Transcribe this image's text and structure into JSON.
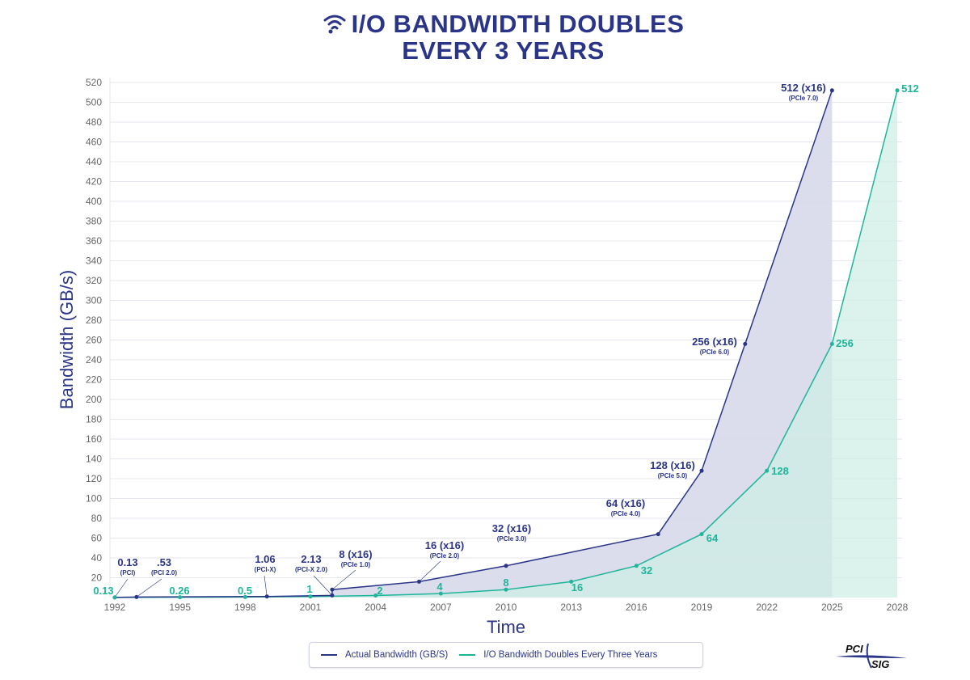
{
  "title": {
    "line1": "I/O BANDWIDTH DOUBLES",
    "line2": "EVERY 3 YEARS",
    "icon": "wifi-icon"
  },
  "logo": {
    "text_top": "PCI",
    "text_bottom": "SIG"
  },
  "colors": {
    "actual": "#2b3587",
    "doubling": "#1fb59a",
    "actual_fill": "#d9daeb",
    "doubling_fill": "#cdeee6"
  },
  "chart_data": {
    "type": "area",
    "xlabel": "Time",
    "ylabel": "Bandwidth (GB/s)",
    "xlim": [
      1992,
      2028
    ],
    "ylim": [
      0,
      520
    ],
    "x_ticks": [
      1992,
      1995,
      1998,
      2001,
      2004,
      2007,
      2010,
      2013,
      2016,
      2019,
      2022,
      2025,
      2028
    ],
    "y_ticks": [
      20,
      40,
      60,
      80,
      100,
      120,
      140,
      160,
      180,
      200,
      220,
      240,
      260,
      280,
      300,
      320,
      340,
      360,
      380,
      400,
      420,
      440,
      460,
      480,
      500,
      520
    ],
    "grid": "horizontal",
    "legend_position": "bottom",
    "series": [
      {
        "name": "Actual Bandwidth (GB/S)",
        "points": [
          {
            "x": 1992,
            "y": 0.13,
            "label": "0.13",
            "sub": "(PCI)"
          },
          {
            "x": 1993,
            "y": 0.53,
            "label": ".53",
            "sub": "(PCI 2.0)"
          },
          {
            "x": 1999,
            "y": 1.06,
            "label": "1.06",
            "sub": "(PCI-X)"
          },
          {
            "x": 2002,
            "y": 2.13,
            "label": "2.13",
            "sub": "(PCI-X 2.0)"
          },
          {
            "x": 2002,
            "y": 8,
            "label": "8 (x16)",
            "sub": "(PCIe 1.0)"
          },
          {
            "x": 2006,
            "y": 16,
            "label": "16 (x16)",
            "sub": "(PCIe 2.0)"
          },
          {
            "x": 2010,
            "y": 32,
            "label": "32 (x16)",
            "sub": "(PCIe 3.0)"
          },
          {
            "x": 2017,
            "y": 64,
            "label": "64 (x16)",
            "sub": "(PCIe 4.0)"
          },
          {
            "x": 2019,
            "y": 128,
            "label": "128 (x16)",
            "sub": "(PCIe 5.0)"
          },
          {
            "x": 2021,
            "y": 256,
            "label": "256 (x16)",
            "sub": "(PCIe 6.0)"
          },
          {
            "x": 2025,
            "y": 512,
            "label": "512 (x16)",
            "sub": "(PCIe 7.0)"
          }
        ]
      },
      {
        "name": "I/O Bandwidth Doubles Every Three Years",
        "points": [
          {
            "x": 1992,
            "y": 0.13,
            "label": "0.13"
          },
          {
            "x": 1995,
            "y": 0.26,
            "label": "0.26"
          },
          {
            "x": 1998,
            "y": 0.5,
            "label": "0.5"
          },
          {
            "x": 2001,
            "y": 1,
            "label": "1"
          },
          {
            "x": 2004,
            "y": 2,
            "label": "2"
          },
          {
            "x": 2007,
            "y": 4,
            "label": "4"
          },
          {
            "x": 2010,
            "y": 8,
            "label": "8"
          },
          {
            "x": 2013,
            "y": 16,
            "label": "16"
          },
          {
            "x": 2016,
            "y": 32,
            "label": "32"
          },
          {
            "x": 2019,
            "y": 64,
            "label": "64"
          },
          {
            "x": 2022,
            "y": 128,
            "label": "128"
          },
          {
            "x": 2025,
            "y": 256,
            "label": "256"
          },
          {
            "x": 2028,
            "y": 512,
            "label": "512"
          }
        ]
      }
    ]
  }
}
